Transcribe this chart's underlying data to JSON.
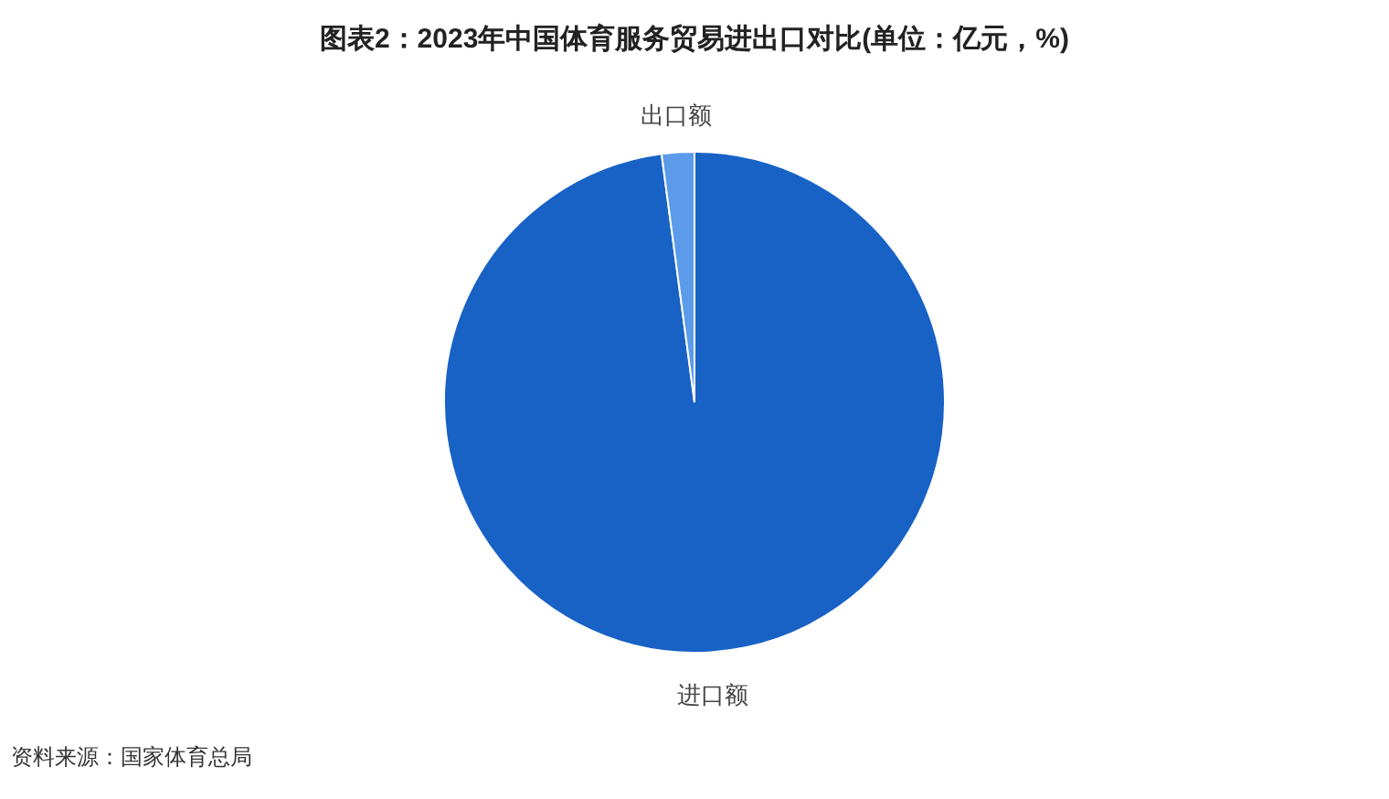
{
  "chart_data": {
    "type": "pie",
    "title": "图表2：2023年中国体育服务贸易进出口对比(单位：亿元，%)",
    "categories": [
      "进口额",
      "出口额"
    ],
    "values": [
      97.9,
      2.1
    ],
    "colors": [
      "#1862c6",
      "#5c9be9"
    ],
    "annotations": [
      "资料来源：国家体育总局"
    ]
  }
}
